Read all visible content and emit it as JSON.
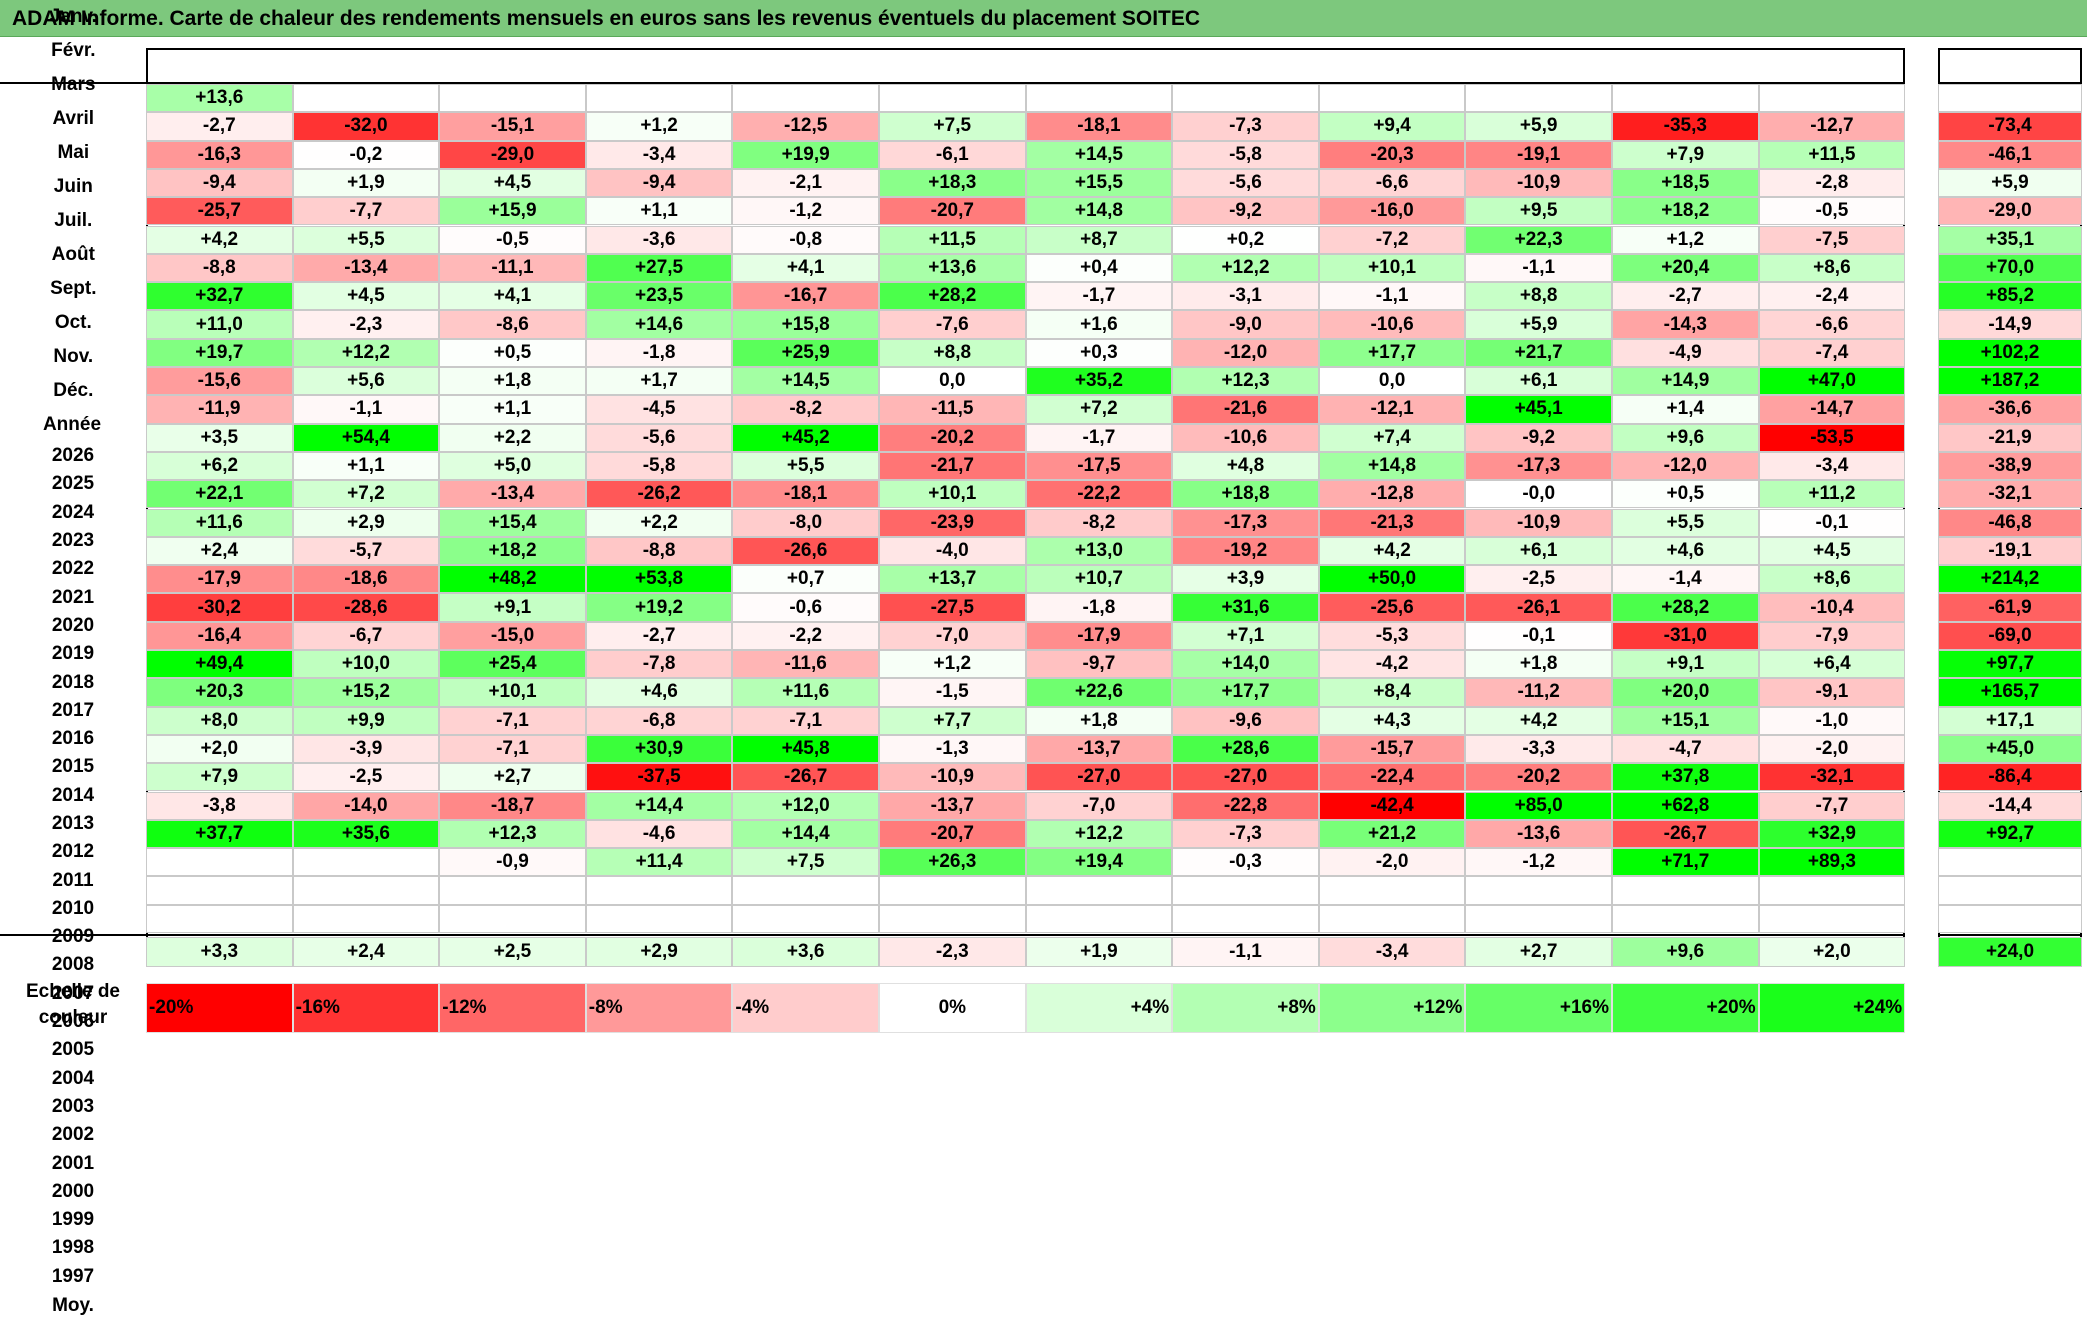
{
  "title": "ADAM Informe. Carte de chaleur des rendements mensuels en euros sans les revenus éventuels du placement SOITEC",
  "colors": {
    "title_bg": "#7dc87d",
    "negative_max": "#ff0000",
    "positive_max": "#00ff00",
    "neutral": "#ffffff"
  },
  "chart_data": {
    "type": "heatmap",
    "title": "ADAM Informe. Carte de chaleur des rendements mensuels en euros sans les revenus éventuels du placement SOITEC",
    "columns": [
      "Janv.",
      "Févr.",
      "Mars",
      "Avril",
      "Mai",
      "Juin",
      "Juil.",
      "Août",
      "Sept.",
      "Oct.",
      "Nov.",
      "Déc."
    ],
    "year_column": "Année",
    "rows": [
      {
        "year": "2026",
        "values": [
          "+13,6",
          "",
          "",
          "",
          "",
          "",
          "",
          "",
          "",
          "",
          "",
          ""
        ],
        "annual": ""
      },
      {
        "year": "2025",
        "values": [
          "-2,7",
          "-32,0",
          "-15,1",
          "+1,2",
          "-12,5",
          "+7,5",
          "-18,1",
          "-7,3",
          "+9,4",
          "+5,9",
          "-35,3",
          "-12,7"
        ],
        "annual": "-73,4"
      },
      {
        "year": "2024",
        "values": [
          "-16,3",
          "-0,2",
          "-29,0",
          "-3,4",
          "+19,9",
          "-6,1",
          "+14,5",
          "-5,8",
          "-20,3",
          "-19,1",
          "+7,9",
          "+11,5"
        ],
        "annual": "-46,1"
      },
      {
        "year": "2023",
        "values": [
          "-9,4",
          "+1,9",
          "+4,5",
          "-9,4",
          "-2,1",
          "+18,3",
          "+15,5",
          "-5,6",
          "-6,6",
          "-10,9",
          "+18,5",
          "-2,8"
        ],
        "annual": "+5,9"
      },
      {
        "year": "2022",
        "values": [
          "-25,7",
          "-7,7",
          "+15,9",
          "+1,1",
          "-1,2",
          "-20,7",
          "+14,8",
          "-9,2",
          "-16,0",
          "+9,5",
          "+18,2",
          "-0,5"
        ],
        "annual": "-29,0"
      },
      {
        "year": "2021",
        "values": [
          "+4,2",
          "+5,5",
          "-0,5",
          "-3,6",
          "-0,8",
          "+11,5",
          "+8,7",
          "+0,2",
          "-7,2",
          "+22,3",
          "+1,2",
          "-7,5"
        ],
        "annual": "+35,1"
      },
      {
        "year": "2020",
        "values": [
          "-8,8",
          "-13,4",
          "-11,1",
          "+27,5",
          "+4,1",
          "+13,6",
          "+0,4",
          "+12,2",
          "+10,1",
          "-1,1",
          "+20,4",
          "+8,6"
        ],
        "annual": "+70,0"
      },
      {
        "year": "2019",
        "values": [
          "+32,7",
          "+4,5",
          "+4,1",
          "+23,5",
          "-16,7",
          "+28,2",
          "-1,7",
          "-3,1",
          "-1,1",
          "+8,8",
          "-2,7",
          "-2,4"
        ],
        "annual": "+85,2"
      },
      {
        "year": "2018",
        "values": [
          "+11,0",
          "-2,3",
          "-8,6",
          "+14,6",
          "+15,8",
          "-7,6",
          "+1,6",
          "-9,0",
          "-10,6",
          "+5,9",
          "-14,3",
          "-6,6"
        ],
        "annual": "-14,9"
      },
      {
        "year": "2017",
        "values": [
          "+19,7",
          "+12,2",
          "+0,5",
          "-1,8",
          "+25,9",
          "+8,8",
          "+0,3",
          "-12,0",
          "+17,7",
          "+21,7",
          "-4,9",
          "-7,4"
        ],
        "annual": "+102,2"
      },
      {
        "year": "2016",
        "values": [
          "-15,6",
          "+5,6",
          "+1,8",
          "+1,7",
          "+14,5",
          "0,0",
          "+35,2",
          "+12,3",
          "0,0",
          "+6,1",
          "+14,9",
          "+47,0"
        ],
        "annual": "+187,2"
      },
      {
        "year": "2015",
        "values": [
          "-11,9",
          "-1,1",
          "+1,1",
          "-4,5",
          "-8,2",
          "-11,5",
          "+7,2",
          "-21,6",
          "-12,1",
          "+45,1",
          "+1,4",
          "-14,7"
        ],
        "annual": "-36,6"
      },
      {
        "year": "2014",
        "values": [
          "+3,5",
          "+54,4",
          "+2,2",
          "-5,6",
          "+45,2",
          "-20,2",
          "-1,7",
          "-10,6",
          "+7,4",
          "-9,2",
          "+9,6",
          "-53,5"
        ],
        "annual": "-21,9"
      },
      {
        "year": "2013",
        "values": [
          "+6,2",
          "+1,1",
          "+5,0",
          "-5,8",
          "+5,5",
          "-21,7",
          "-17,5",
          "+4,8",
          "+14,8",
          "-17,3",
          "-12,0",
          "-3,4"
        ],
        "annual": "-38,9"
      },
      {
        "year": "2012",
        "values": [
          "+22,1",
          "+7,2",
          "-13,4",
          "-26,2",
          "-18,1",
          "+10,1",
          "-22,2",
          "+18,8",
          "-12,8",
          "-0,0",
          "+0,5",
          "+11,2"
        ],
        "annual": "-32,1"
      },
      {
        "year": "2011",
        "values": [
          "+11,6",
          "+2,9",
          "+15,4",
          "+2,2",
          "-8,0",
          "-23,9",
          "-8,2",
          "-17,3",
          "-21,3",
          "-10,9",
          "+5,5",
          "-0,1"
        ],
        "annual": "-46,8"
      },
      {
        "year": "2010",
        "values": [
          "+2,4",
          "-5,7",
          "+18,2",
          "-8,8",
          "-26,6",
          "-4,0",
          "+13,0",
          "-19,2",
          "+4,2",
          "+6,1",
          "+4,6",
          "+4,5"
        ],
        "annual": "-19,1"
      },
      {
        "year": "2009",
        "values": [
          "-17,9",
          "-18,6",
          "+48,2",
          "+53,8",
          "+0,7",
          "+13,7",
          "+10,7",
          "+3,9",
          "+50,0",
          "-2,5",
          "-1,4",
          "+8,6"
        ],
        "annual": "+214,2"
      },
      {
        "year": "2008",
        "values": [
          "-30,2",
          "-28,6",
          "+9,1",
          "+19,2",
          "-0,6",
          "-27,5",
          "-1,8",
          "+31,6",
          "-25,6",
          "-26,1",
          "+28,2",
          "-10,4"
        ],
        "annual": "-61,9"
      },
      {
        "year": "2007",
        "values": [
          "-16,4",
          "-6,7",
          "-15,0",
          "-2,7",
          "-2,2",
          "-7,0",
          "-17,9",
          "+7,1",
          "-5,3",
          "-0,1",
          "-31,0",
          "-7,9"
        ],
        "annual": "-69,0"
      },
      {
        "year": "2006",
        "values": [
          "+49,4",
          "+10,0",
          "+25,4",
          "-7,8",
          "-11,6",
          "+1,2",
          "-9,7",
          "+14,0",
          "-4,2",
          "+1,8",
          "+9,1",
          "+6,4"
        ],
        "annual": "+97,7"
      },
      {
        "year": "2005",
        "values": [
          "+20,3",
          "+15,2",
          "+10,1",
          "+4,6",
          "+11,6",
          "-1,5",
          "+22,6",
          "+17,7",
          "+8,4",
          "-11,2",
          "+20,0",
          "-9,1"
        ],
        "annual": "+165,7"
      },
      {
        "year": "2004",
        "values": [
          "+8,0",
          "+9,9",
          "-7,1",
          "-6,8",
          "-7,1",
          "+7,7",
          "+1,8",
          "-9,6",
          "+4,3",
          "+4,2",
          "+15,1",
          "-1,0"
        ],
        "annual": "+17,1"
      },
      {
        "year": "2003",
        "values": [
          "+2,0",
          "-3,9",
          "-7,1",
          "+30,9",
          "+45,8",
          "-1,3",
          "-13,7",
          "+28,6",
          "-15,7",
          "-3,3",
          "-4,7",
          "-2,0"
        ],
        "annual": "+45,0"
      },
      {
        "year": "2002",
        "values": [
          "+7,9",
          "-2,5",
          "+2,7",
          "-37,5",
          "-26,7",
          "-10,9",
          "-27,0",
          "-27,0",
          "-22,4",
          "-20,2",
          "+37,8",
          "-32,1"
        ],
        "annual": "-86,4"
      },
      {
        "year": "2001",
        "values": [
          "-3,8",
          "-14,0",
          "-18,7",
          "+14,4",
          "+12,0",
          "-13,7",
          "-7,0",
          "-22,8",
          "-42,4",
          "+85,0",
          "+62,8",
          "-7,7"
        ],
        "annual": "-14,4"
      },
      {
        "year": "2000",
        "values": [
          "+37,7",
          "+35,6",
          "+12,3",
          "-4,6",
          "+14,4",
          "-20,7",
          "+12,2",
          "-7,3",
          "+21,2",
          "-13,6",
          "-26,7",
          "+32,9"
        ],
        "annual": "+92,7"
      },
      {
        "year": "1999",
        "values": [
          "",
          "",
          "-0,9",
          "+11,4",
          "+7,5",
          "+26,3",
          "+19,4",
          "-0,3",
          "-2,0",
          "-1,2",
          "+71,7",
          "+89,3"
        ],
        "annual": ""
      },
      {
        "year": "1998",
        "values": [
          "",
          "",
          "",
          "",
          "",
          "",
          "",
          "",
          "",
          "",
          "",
          ""
        ],
        "annual": ""
      },
      {
        "year": "1997",
        "values": [
          "",
          "",
          "",
          "",
          "",
          "",
          "",
          "",
          "",
          "",
          "",
          ""
        ],
        "annual": ""
      }
    ],
    "average": {
      "label": "Moy.",
      "values": [
        "+3,3",
        "+2,4",
        "+2,5",
        "+2,9",
        "+3,6",
        "-2,3",
        "+1,9",
        "-1,1",
        "-3,4",
        "+2,7",
        "+9,6",
        "+2,0"
      ],
      "annual": "+24,0"
    },
    "scale": {
      "label": "Echelle de couleur",
      "entries": [
        "-20%",
        "-16%",
        "-12%",
        "-8%",
        "-4%",
        "0%",
        "+4%",
        "+8%",
        "+12%",
        "+16%",
        "+20%",
        "+24%"
      ]
    }
  }
}
